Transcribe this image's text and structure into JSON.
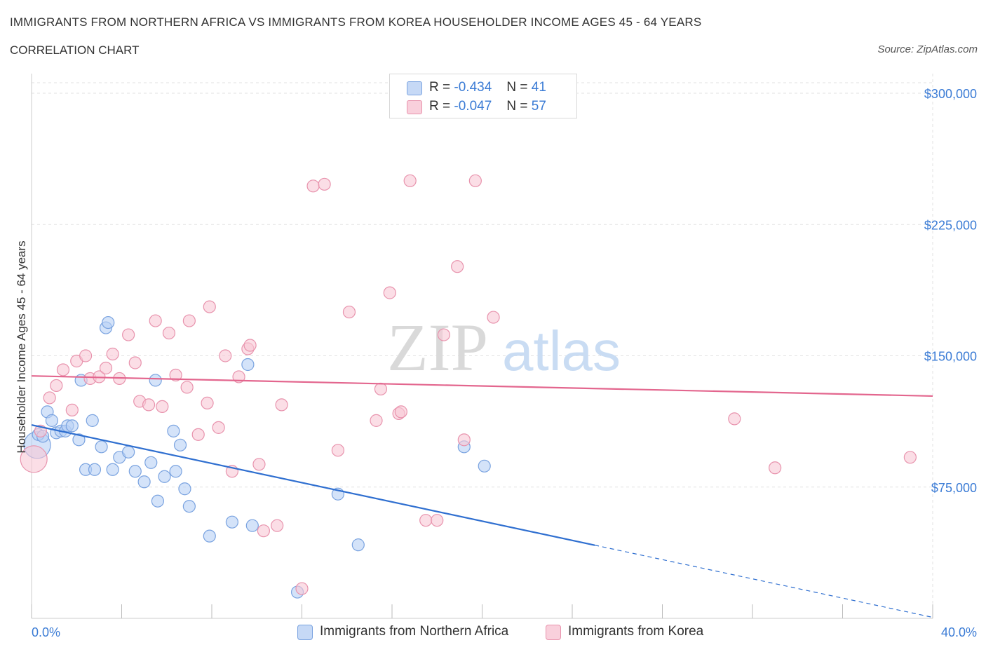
{
  "header": {
    "title": "IMMIGRANTS FROM NORTHERN AFRICA VS IMMIGRANTS FROM KOREA HOUSEHOLDER INCOME AGES 45 - 64 YEARS",
    "subtitle": "CORRELATION CHART",
    "source": "Source: ZipAtlas.com"
  },
  "legend": {
    "series1": {
      "r_label": "R =",
      "r_value": "-0.434",
      "n_label": "N =",
      "n_value": "41"
    },
    "series2": {
      "r_label": "R =",
      "r_value": "-0.047",
      "n_label": "N =",
      "n_value": "57"
    }
  },
  "watermark": {
    "zip": "ZIP",
    "atlas": "atlas"
  },
  "colors": {
    "blue_fill": "#b7d0f5",
    "blue_stroke": "#7aa3e0",
    "blue_line": "#2f6fd0",
    "pink_fill": "#f8c8d6",
    "pink_stroke": "#e893ad",
    "pink_line": "#e3668e",
    "tick_text": "#3a7bd5",
    "grid": "#e2e2e2"
  },
  "chart_data": {
    "type": "scatter",
    "title": "IMMIGRANTS FROM NORTHERN AFRICA VS IMMIGRANTS FROM KOREA HOUSEHOLDER INCOME AGES 45 - 64 YEARS",
    "xlabel": "",
    "ylabel": "Householder Income Ages 45 - 64 years",
    "xlim": [
      0,
      40
    ],
    "ylim": [
      0,
      312000
    ],
    "x_tick_labels": [
      "0.0%",
      "40.0%"
    ],
    "y_ticks": [
      75000,
      150000,
      225000,
      300000
    ],
    "y_tick_labels": [
      "$75,000",
      "$150,000",
      "$225,000",
      "$300,000"
    ],
    "grid": true,
    "legend_placement": "bottom-center",
    "series": [
      {
        "name": "Immigrants from Northern Africa",
        "color": "#b7d0f5",
        "trend": {
          "x": [
            0,
            25
          ],
          "y": [
            110500,
            41800
          ],
          "dashed_extension_to_x": 40
        },
        "points": [
          {
            "x": 0.25,
            "y": 99000,
            "big": true
          },
          {
            "x": 0.3,
            "y": 105000
          },
          {
            "x": 0.5,
            "y": 104000
          },
          {
            "x": 0.7,
            "y": 118000
          },
          {
            "x": 0.9,
            "y": 113000
          },
          {
            "x": 1.1,
            "y": 106000
          },
          {
            "x": 1.3,
            "y": 107000
          },
          {
            "x": 1.5,
            "y": 107000
          },
          {
            "x": 1.6,
            "y": 110000
          },
          {
            "x": 1.8,
            "y": 110000
          },
          {
            "x": 2.1,
            "y": 102000
          },
          {
            "x": 2.2,
            "y": 136000
          },
          {
            "x": 2.4,
            "y": 85000
          },
          {
            "x": 2.7,
            "y": 113000
          },
          {
            "x": 2.8,
            "y": 85000
          },
          {
            "x": 3.1,
            "y": 98000
          },
          {
            "x": 3.3,
            "y": 166000
          },
          {
            "x": 3.4,
            "y": 169000
          },
          {
            "x": 3.6,
            "y": 85000
          },
          {
            "x": 3.9,
            "y": 92000
          },
          {
            "x": 4.3,
            "y": 95000
          },
          {
            "x": 4.6,
            "y": 84000
          },
          {
            "x": 5.0,
            "y": 78000
          },
          {
            "x": 5.3,
            "y": 89000
          },
          {
            "x": 5.5,
            "y": 136000
          },
          {
            "x": 5.6,
            "y": 67000
          },
          {
            "x": 5.9,
            "y": 81000
          },
          {
            "x": 6.3,
            "y": 107000
          },
          {
            "x": 6.4,
            "y": 84000
          },
          {
            "x": 6.6,
            "y": 99000
          },
          {
            "x": 6.8,
            "y": 74000
          },
          {
            "x": 7.0,
            "y": 64000
          },
          {
            "x": 7.9,
            "y": 47000
          },
          {
            "x": 8.9,
            "y": 55000
          },
          {
            "x": 9.6,
            "y": 145000
          },
          {
            "x": 9.8,
            "y": 53000
          },
          {
            "x": 11.8,
            "y": 15000
          },
          {
            "x": 13.6,
            "y": 71000
          },
          {
            "x": 14.5,
            "y": 42000
          },
          {
            "x": 19.2,
            "y": 98000
          },
          {
            "x": 20.1,
            "y": 87000
          }
        ]
      },
      {
        "name": "Immigrants from Korea",
        "color": "#f8c8d6",
        "trend": {
          "x": [
            0,
            40
          ],
          "y": [
            138500,
            127000
          ]
        },
        "points": [
          {
            "x": 0.1,
            "y": 91000,
            "big": true
          },
          {
            "x": 0.4,
            "y": 107000
          },
          {
            "x": 0.8,
            "y": 126000
          },
          {
            "x": 1.1,
            "y": 133000
          },
          {
            "x": 1.4,
            "y": 142000
          },
          {
            "x": 1.8,
            "y": 119000
          },
          {
            "x": 2.0,
            "y": 147000
          },
          {
            "x": 2.4,
            "y": 150000
          },
          {
            "x": 2.6,
            "y": 137000
          },
          {
            "x": 3.0,
            "y": 138000
          },
          {
            "x": 3.3,
            "y": 143000
          },
          {
            "x": 3.6,
            "y": 151000
          },
          {
            "x": 3.9,
            "y": 137000
          },
          {
            "x": 4.3,
            "y": 162000
          },
          {
            "x": 4.6,
            "y": 146000
          },
          {
            "x": 4.8,
            "y": 124000
          },
          {
            "x": 5.2,
            "y": 122000
          },
          {
            "x": 5.5,
            "y": 170000
          },
          {
            "x": 5.8,
            "y": 121000
          },
          {
            "x": 6.1,
            "y": 163000
          },
          {
            "x": 6.4,
            "y": 139000
          },
          {
            "x": 6.9,
            "y": 132000
          },
          {
            "x": 7.0,
            "y": 170000
          },
          {
            "x": 7.4,
            "y": 105000
          },
          {
            "x": 7.8,
            "y": 123000
          },
          {
            "x": 7.9,
            "y": 178000
          },
          {
            "x": 8.3,
            "y": 109000
          },
          {
            "x": 8.6,
            "y": 150000
          },
          {
            "x": 8.9,
            "y": 84000
          },
          {
            "x": 9.2,
            "y": 138000
          },
          {
            "x": 9.6,
            "y": 154000
          },
          {
            "x": 9.7,
            "y": 156000
          },
          {
            "x": 10.1,
            "y": 88000
          },
          {
            "x": 10.3,
            "y": 50000
          },
          {
            "x": 10.9,
            "y": 53000
          },
          {
            "x": 11.1,
            "y": 122000
          },
          {
            "x": 12.0,
            "y": 17000
          },
          {
            "x": 12.5,
            "y": 247000
          },
          {
            "x": 13.0,
            "y": 248000
          },
          {
            "x": 13.6,
            "y": 96000
          },
          {
            "x": 14.1,
            "y": 175000
          },
          {
            "x": 15.3,
            "y": 113000
          },
          {
            "x": 15.5,
            "y": 131000
          },
          {
            "x": 15.9,
            "y": 186000
          },
          {
            "x": 16.3,
            "y": 117000
          },
          {
            "x": 16.4,
            "y": 118000
          },
          {
            "x": 16.8,
            "y": 250000
          },
          {
            "x": 17.5,
            "y": 56000
          },
          {
            "x": 18.0,
            "y": 56000
          },
          {
            "x": 18.3,
            "y": 162000
          },
          {
            "x": 18.9,
            "y": 201000
          },
          {
            "x": 19.2,
            "y": 102000
          },
          {
            "x": 19.7,
            "y": 250000
          },
          {
            "x": 20.5,
            "y": 172000
          },
          {
            "x": 31.2,
            "y": 114000
          },
          {
            "x": 33.0,
            "y": 86000
          },
          {
            "x": 39.0,
            "y": 92000
          }
        ]
      }
    ]
  }
}
